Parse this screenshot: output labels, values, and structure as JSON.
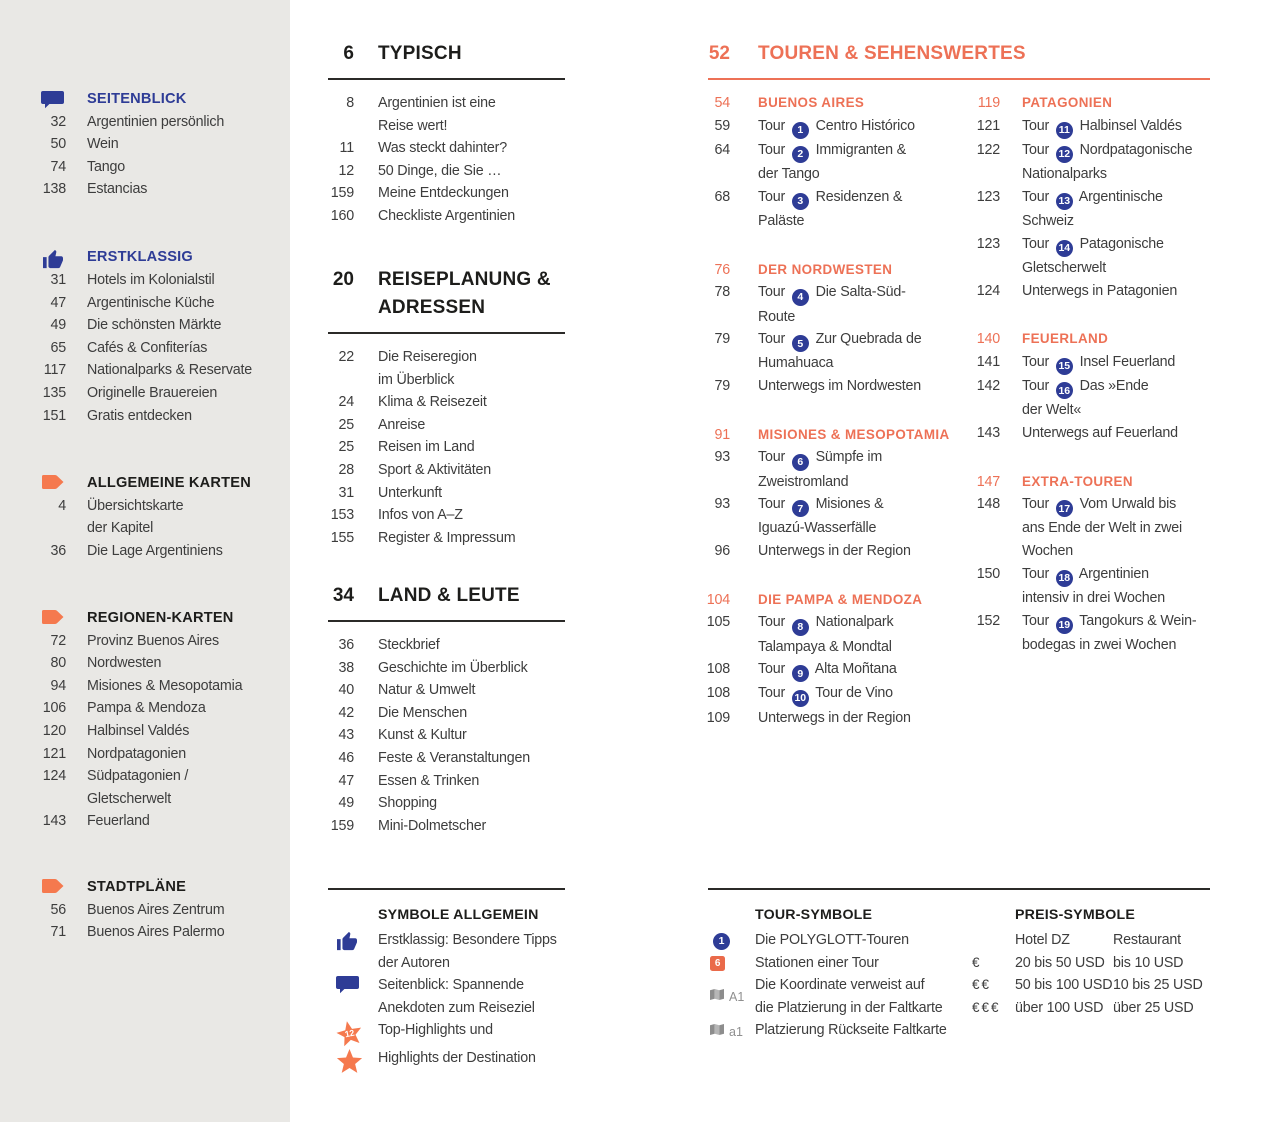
{
  "colors": {
    "accent_orange": "#ED7156",
    "icon_orange": "#F5794E",
    "accent_blue": "#2E3C96",
    "sidebar_bg": "#E9E8E5",
    "text_dark": "#1D1D1B",
    "text_body": "#3D3D3D",
    "muted_gray": "#8F8F8F"
  },
  "sidebar": {
    "sections": [
      {
        "id": "seitenblick",
        "icon": "speech-bubble-icon",
        "title": "SEITENBLICK",
        "title_style": "blue",
        "items": [
          {
            "page": "32",
            "lines": [
              "Argentinien persönlich"
            ]
          },
          {
            "page": "50",
            "lines": [
              "Wein"
            ]
          },
          {
            "page": "74",
            "lines": [
              "Tango"
            ]
          },
          {
            "page": "138",
            "lines": [
              "Estancias"
            ]
          }
        ]
      },
      {
        "id": "erstklassig",
        "icon": "thumbs-up-icon",
        "title": "ERSTKLASSIG",
        "title_style": "blue",
        "items": [
          {
            "page": "31",
            "lines": [
              "Hotels im Kolonialstil"
            ]
          },
          {
            "page": "47",
            "lines": [
              "Argentinische Küche"
            ]
          },
          {
            "page": "49",
            "lines": [
              "Die schönsten Märkte"
            ]
          },
          {
            "page": "65",
            "lines": [
              "Cafés & Confiterías"
            ]
          },
          {
            "page": "117",
            "lines": [
              "Nationalparks & Reservate"
            ]
          },
          {
            "page": "135",
            "lines": [
              "Originelle Brauereien"
            ]
          },
          {
            "page": "151",
            "lines": [
              "Gratis entdecken"
            ]
          }
        ]
      },
      {
        "id": "allgemeine-karten",
        "icon": "arrow-tag-icon",
        "title": "ALLGEMEINE KARTEN",
        "title_style": "dark",
        "items": [
          {
            "page": "4",
            "lines": [
              "Übersichtskarte",
              "der Kapitel"
            ]
          },
          {
            "page": "36",
            "lines": [
              "Die Lage Argentiniens"
            ]
          }
        ]
      },
      {
        "id": "regionen-karten",
        "icon": "arrow-tag-icon",
        "title": "REGIONEN-KARTEN",
        "title_style": "dark",
        "items": [
          {
            "page": "72",
            "lines": [
              "Provinz Buenos Aires"
            ]
          },
          {
            "page": "80",
            "lines": [
              "Nordwesten"
            ]
          },
          {
            "page": "94",
            "lines": [
              "Misiones & Mesopotamia"
            ]
          },
          {
            "page": "106",
            "lines": [
              "Pampa & Mendoza"
            ]
          },
          {
            "page": "120",
            "lines": [
              "Halbinsel Valdés"
            ]
          },
          {
            "page": "121",
            "lines": [
              "Nordpatagonien"
            ]
          },
          {
            "page": "124",
            "lines": [
              "Südpatagonien /",
              "Gletscherwelt"
            ]
          },
          {
            "page": "143",
            "lines": [
              "Feuerland"
            ]
          }
        ]
      },
      {
        "id": "stadtplaene",
        "icon": "arrow-tag-icon",
        "title": "STADTPLÄNE",
        "title_style": "dark",
        "items": [
          {
            "page": "56",
            "lines": [
              "Buenos Aires Zentrum"
            ]
          },
          {
            "page": "71",
            "lines": [
              "Buenos Aires Palermo"
            ]
          }
        ]
      }
    ]
  },
  "chapters": [
    {
      "id": "typisch",
      "page": "6",
      "title_lines": [
        "TYPISCH"
      ],
      "items": [
        {
          "page": "8",
          "lines": [
            "Argentinien ist eine",
            "Reise wert!"
          ]
        },
        {
          "page": "11",
          "lines": [
            "Was steckt dahinter?"
          ]
        },
        {
          "page": "12",
          "lines": [
            "50 Dinge, die Sie …"
          ]
        },
        {
          "page": "159",
          "lines": [
            "Meine Entdeckungen"
          ]
        },
        {
          "page": "160",
          "lines": [
            "Checkliste Argentinien"
          ]
        }
      ]
    },
    {
      "id": "reiseplanung",
      "page": "20",
      "title_lines": [
        "REISEPLANUNG &",
        "ADRESSEN"
      ],
      "items": [
        {
          "page": "22",
          "lines": [
            "Die Reiseregion",
            "im Überblick"
          ]
        },
        {
          "page": "24",
          "lines": [
            "Klima & Reisezeit"
          ]
        },
        {
          "page": "25",
          "lines": [
            "Anreise"
          ]
        },
        {
          "page": "25",
          "lines": [
            "Reisen im Land"
          ]
        },
        {
          "page": "28",
          "lines": [
            "Sport & Aktivitäten"
          ]
        },
        {
          "page": "31",
          "lines": [
            "Unterkunft"
          ]
        },
        {
          "page": "153",
          "lines": [
            "Infos von A–Z"
          ]
        },
        {
          "page": "155",
          "lines": [
            "Register & Impressum"
          ]
        }
      ]
    },
    {
      "id": "land-leute",
      "page": "34",
      "title_lines": [
        "LAND & LEUTE"
      ],
      "items": [
        {
          "page": "36",
          "lines": [
            "Steckbrief"
          ]
        },
        {
          "page": "38",
          "lines": [
            "Geschichte im Überblick"
          ]
        },
        {
          "page": "40",
          "lines": [
            "Natur & Umwelt"
          ]
        },
        {
          "page": "42",
          "lines": [
            "Die Menschen"
          ]
        },
        {
          "page": "43",
          "lines": [
            "Kunst & Kultur"
          ]
        },
        {
          "page": "46",
          "lines": [
            "Feste & Veranstaltungen"
          ]
        },
        {
          "page": "47",
          "lines": [
            "Essen & Trinken"
          ]
        },
        {
          "page": "49",
          "lines": [
            "Shopping"
          ]
        },
        {
          "page": "159",
          "lines": [
            "Mini-Dolmetscher"
          ]
        }
      ]
    }
  ],
  "tours": {
    "page": "52",
    "title": "TOUREN & SEHENSWERTES",
    "tour_prefix": "Tour",
    "columns": [
      [
        {
          "page": "54",
          "region": "BUENOS AIRES",
          "items": [
            {
              "page": "59",
              "badge": "1",
              "lines": [
                "Centro Histórico"
              ]
            },
            {
              "page": "64",
              "badge": "2",
              "lines": [
                "Immigranten &",
                "der Tango"
              ]
            },
            {
              "page": "68",
              "badge": "3",
              "lines": [
                "Residenzen &",
                "Paläste"
              ]
            }
          ]
        },
        {
          "page": "76",
          "region": "DER NORDWESTEN",
          "items": [
            {
              "page": "78",
              "badge": "4",
              "lines": [
                "Die Salta-Süd-",
                "Route"
              ]
            },
            {
              "page": "79",
              "badge": "5",
              "lines": [
                "Zur Quebrada de",
                "Humahuaca"
              ]
            },
            {
              "page": "79",
              "lines": [
                "Unterwegs im Nordwesten"
              ]
            }
          ]
        },
        {
          "page": "91",
          "region": "MISIONES & MESOPOTAMIA",
          "items": [
            {
              "page": "93",
              "badge": "6",
              "lines": [
                "Sümpfe im",
                "Zweistromland"
              ]
            },
            {
              "page": "93",
              "badge": "7",
              "lines": [
                "Misiones &",
                "Iguazú-Wasserfälle"
              ]
            },
            {
              "page": "96",
              "lines": [
                "Unterwegs in der Region"
              ]
            }
          ]
        },
        {
          "page": "104",
          "region": "DIE PAMPA & MENDOZA",
          "items": [
            {
              "page": "105",
              "badge": "8",
              "lines": [
                "Nationalpark",
                "Talampaya & Mondtal"
              ]
            },
            {
              "page": "108",
              "badge": "9",
              "lines": [
                "Alta Moñtana"
              ]
            },
            {
              "page": "108",
              "badge": "10",
              "lines": [
                "Tour de Vino"
              ]
            },
            {
              "page": "109",
              "lines": [
                "Unterwegs in der Region"
              ]
            }
          ]
        }
      ],
      [
        {
          "page": "119",
          "region": "PATAGONIEN",
          "items": [
            {
              "page": "121",
              "badge": "11",
              "lines": [
                "Halbinsel Valdés"
              ]
            },
            {
              "page": "122",
              "badge": "12",
              "lines": [
                "Nordpatagonische",
                "Nationalparks"
              ]
            },
            {
              "page": "123",
              "badge": "13",
              "lines": [
                "Argentinische",
                "Schweiz"
              ]
            },
            {
              "page": "123",
              "badge": "14",
              "lines": [
                "Patagonische",
                "Gletscherwelt"
              ]
            },
            {
              "page": "124",
              "lines": [
                "Unterwegs in Patagonien"
              ]
            }
          ]
        },
        {
          "page": "140",
          "region": "FEUERLAND",
          "items": [
            {
              "page": "141",
              "badge": "15",
              "lines": [
                "Insel Feuerland"
              ]
            },
            {
              "page": "142",
              "badge": "16",
              "lines": [
                "Das »Ende",
                "der Welt«"
              ]
            },
            {
              "page": "143",
              "lines": [
                "Unterwegs auf Feuerland"
              ]
            }
          ]
        },
        {
          "page": "147",
          "region": "EXTRA-TOUREN",
          "items": [
            {
              "page": "148",
              "badge": "17",
              "lines": [
                "Vom Urwald bis",
                "ans Ende der Welt in zwei",
                "Wochen"
              ]
            },
            {
              "page": "150",
              "badge": "18",
              "lines": [
                "Argentinien",
                "intensiv in drei Wochen"
              ]
            },
            {
              "page": "152",
              "badge": "19",
              "lines": [
                "Tangokurs & Wein-",
                "bodegas in zwei Wochen"
              ]
            }
          ]
        }
      ]
    ]
  },
  "legend_general": {
    "title": "SYMBOLE ALLGEMEIN",
    "items": [
      {
        "icon": "thumbs-up-icon",
        "lines": [
          "Erstklassig: Besondere Tipps",
          "der Autoren"
        ]
      },
      {
        "icon": "speech-bubble-icon",
        "lines": [
          "Seitenblick: Spannende",
          "Anekdoten zum Reiseziel"
        ]
      },
      {
        "icon": "star-12-icon",
        "icon_text": "12",
        "lines": [
          "Top-Highlights und"
        ]
      },
      {
        "icon": "star-icon",
        "lines": [
          "Highlights der Destination"
        ]
      }
    ]
  },
  "legend_tour": {
    "title": "TOUR-SYMBOLE",
    "items": [
      {
        "icon": "tour-number-badge",
        "icon_text": "1",
        "lines": [
          "Die POLYGLOTT-Touren"
        ]
      },
      {
        "icon": "station-square-badge",
        "icon_text": "6",
        "lines": [
          "Stationen einer Tour"
        ]
      },
      {
        "icon": "folded-map-icon",
        "icon_text": "A1",
        "lines": [
          "Die Koordinate verweist auf",
          "die Platzierung in der Faltkarte"
        ]
      },
      {
        "icon": "folded-map-icon",
        "icon_text": "a1",
        "lines": [
          "Platzierung Rückseite Faltkarte"
        ]
      }
    ]
  },
  "legend_price": {
    "title": "PREIS-SYMBOLE",
    "col_headers": [
      "Hotel DZ",
      "Restaurant"
    ],
    "rows": [
      {
        "symbol": "€",
        "hotel": "20 bis 50 USD",
        "restaurant": "bis 10 USD"
      },
      {
        "symbol": "€€",
        "hotel": "50 bis 100 USD",
        "restaurant": "10 bis 25 USD"
      },
      {
        "symbol": "€€€",
        "hotel": "über 100 USD",
        "restaurant": "über 25 USD"
      }
    ]
  }
}
